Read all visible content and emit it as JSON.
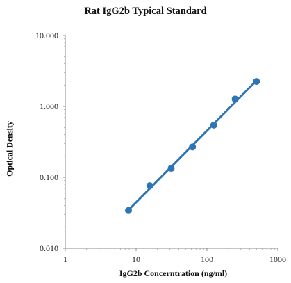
{
  "chart_data": {
    "type": "scatter",
    "title": "Rat IgG2b Typical Standard",
    "xlabel": "IgG2b Concerntration (ng/ml)",
    "ylabel": "Optical Density",
    "xscale": "log",
    "yscale": "log",
    "xlim": [
      1,
      1000
    ],
    "ylim": [
      0.01,
      10
    ],
    "x_ticks": [
      "1",
      "10",
      "100",
      "1000"
    ],
    "y_ticks": [
      "0.010",
      "0.100",
      "1.000",
      "10.000"
    ],
    "grid": false,
    "legend": "none",
    "series": [
      {
        "x": [
          7.8,
          15.6,
          31.25,
          62.5,
          125,
          250,
          500
        ],
        "y": [
          0.034,
          0.076,
          0.134,
          0.268,
          0.545,
          1.27,
          2.25
        ],
        "color": "#2e75b6",
        "fit_line": true
      }
    ]
  }
}
